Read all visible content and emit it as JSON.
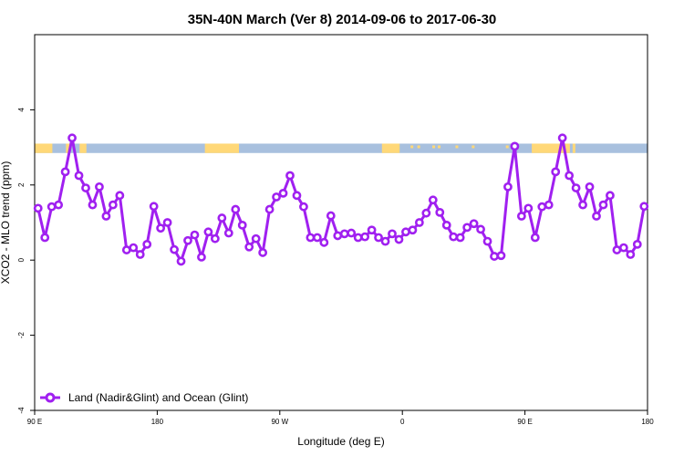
{
  "chart_data": {
    "type": "line",
    "title": "35N-40N March (Ver 8)   2014-09-06 to 2017-06-30",
    "xlabel": "Longitude (deg E)",
    "ylabel": "XCO2 - MLO trend (ppm)",
    "xlim": [
      90,
      540
    ],
    "ylim": [
      -4,
      6
    ],
    "x_ticks": [
      {
        "value": 90,
        "label": "90 E"
      },
      {
        "value": 180,
        "label": "180"
      },
      {
        "value": 270,
        "label": "90 W"
      },
      {
        "value": 360,
        "label": "0"
      },
      {
        "value": 450,
        "label": "90 E"
      },
      {
        "value": 540,
        "label": "180"
      }
    ],
    "y_ticks": [
      {
        "value": -4,
        "label": "-4"
      },
      {
        "value": -2,
        "label": "-2"
      },
      {
        "value": 0,
        "label": "0"
      },
      {
        "value": 2,
        "label": "2"
      },
      {
        "value": 4,
        "label": "4"
      }
    ],
    "legend_position": "bottom-left",
    "series": [
      {
        "name": "Land (Nadir&Glint) and Ocean (Glint)",
        "color": "#a020f0",
        "marker": "open-circle",
        "x": [
          92.5,
          97.5,
          102.5,
          107.5,
          112.5,
          117.5,
          122.5,
          127.5,
          132.5,
          137.5,
          142.5,
          147.5,
          152.5,
          157.5,
          162.5,
          167.5,
          172.5,
          177.5,
          182.5,
          187.5,
          192.5,
          197.5,
          202.5,
          207.5,
          212.5,
          217.5,
          222.5,
          227.5,
          232.5,
          237.5,
          242.5,
          247.5,
          252.5,
          257.5,
          262.5,
          267.5,
          272.5,
          277.5,
          282.5,
          287.5,
          292.5,
          297.5,
          302.5,
          307.5,
          312.5,
          317.5,
          322.5,
          327.5,
          332.5,
          337.5,
          342.5,
          347.5,
          352.5,
          357.5,
          362.5,
          367.5,
          372.5,
          377.5,
          382.5,
          387.5,
          392.5,
          397.5,
          402.5,
          407.5,
          412.5,
          417.5,
          422.5,
          427.5,
          432.5,
          437.5,
          442.5,
          447.5,
          452.5,
          457.5,
          462.5,
          467.5,
          472.5,
          477.5,
          482.5,
          487.5,
          492.5,
          497.5,
          502.5,
          507.5,
          512.5,
          517.5,
          522.5,
          527.5,
          532.5,
          537.5
        ],
        "y": [
          1.38,
          0.6,
          1.42,
          1.47,
          2.35,
          3.25,
          2.25,
          1.92,
          1.47,
          1.95,
          1.17,
          1.47,
          1.72,
          0.27,
          0.33,
          0.15,
          0.42,
          1.43,
          0.85,
          1.0,
          0.28,
          -0.03,
          0.52,
          0.67,
          0.08,
          0.75,
          0.57,
          1.12,
          0.72,
          1.35,
          0.93,
          0.35,
          0.57,
          0.2,
          1.35,
          1.68,
          1.78,
          2.25,
          1.72,
          1.42,
          0.6,
          0.6,
          0.47,
          1.18,
          0.65,
          0.7,
          0.72,
          0.6,
          0.62,
          0.8,
          0.6,
          0.5,
          0.7,
          0.55,
          0.75,
          0.8,
          1.0,
          1.25,
          1.6,
          1.27,
          0.93,
          0.62,
          0.6,
          0.87,
          0.97,
          0.82,
          0.5,
          0.1,
          0.12,
          1.95,
          3.03,
          1.17,
          1.38,
          0.6,
          1.42,
          1.47,
          2.35,
          3.25,
          2.25,
          1.92,
          1.47,
          1.95,
          1.17,
          1.47,
          1.72,
          0.27,
          0.33,
          0.15,
          0.42,
          1.43
        ]
      }
    ],
    "land_ocean_strip": {
      "y_range": [
        2.85,
        3.1
      ],
      "ocean_color": "#a8c0de",
      "land_color": "#ffd878",
      "land_intervals": [
        [
          90,
          103
        ],
        [
          113,
          116
        ],
        [
          123,
          128
        ],
        [
          215,
          240
        ],
        [
          345,
          358
        ],
        [
          455,
          483
        ],
        [
          485,
          487
        ]
      ],
      "land_specks": [
        367,
        372,
        383,
        387,
        400,
        412,
        437
      ]
    }
  }
}
